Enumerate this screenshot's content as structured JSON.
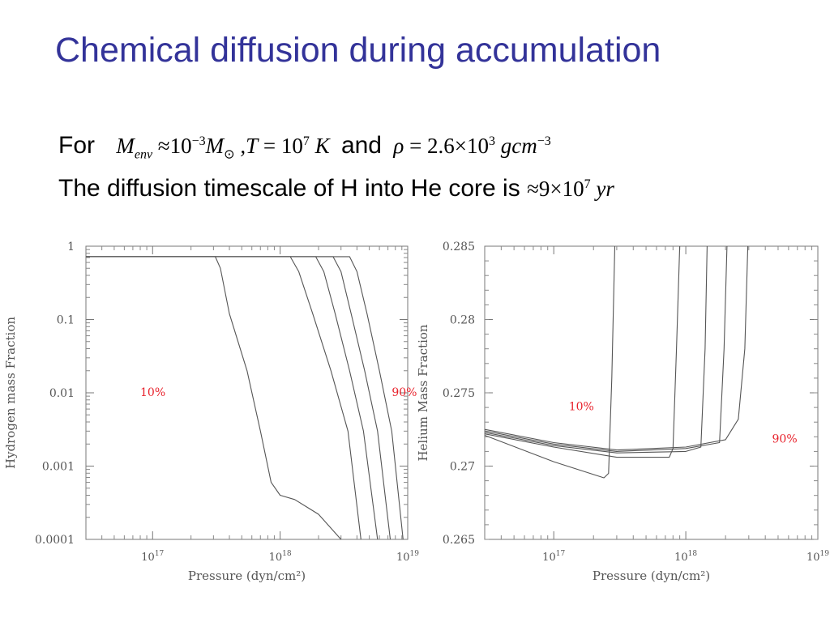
{
  "slide": {
    "title": "Chemical diffusion during accumulation",
    "line1": {
      "prefix": "For",
      "menv_M": "M",
      "menv_sub": "env",
      "approx1": "≈",
      "ten_base": "10",
      "exp_neg3": "−3",
      "msun_M": "M",
      "msun_sub": "⊙",
      "comma_T": ",T",
      "eq1": "=",
      "ten7_base": "10",
      "exp7": "7",
      "K": "K",
      "and": "and",
      "rho": "ρ",
      "eq2": "=",
      "rho_val": "2.6×10",
      "exp3": "3",
      "unit": "gcm",
      "unit_exp": "−3"
    },
    "line2": {
      "text": "The diffusion timescale of H into He core is",
      "approx": "≈",
      "value": "9×10",
      "exp": "7",
      "unit": "yr"
    }
  },
  "chart_data": [
    {
      "type": "line",
      "xlabel": "Pressure (dyn/cm²)",
      "ylabel": "Hydrogen mass Fraction",
      "xscale": "log",
      "yscale": "log",
      "xlim": [
        3e+16,
        1e+19
      ],
      "ylim": [
        0.0001,
        1
      ],
      "xticks": [
        1e+17,
        1e+18,
        1e+19
      ],
      "xtick_labels": [
        {
          "base": "10",
          "exp": "17"
        },
        {
          "base": "10",
          "exp": "18"
        },
        {
          "base": "10",
          "exp": "19"
        }
      ],
      "yticks": [
        0.0001,
        0.001,
        0.01,
        0.1,
        1
      ],
      "ytick_labels": [
        "0.0001",
        "0.001",
        "0.01",
        "0.1",
        "1"
      ],
      "annotations": [
        {
          "text": "10%",
          "x": 8e+16,
          "y": 0.009,
          "color": "#e8212b"
        },
        {
          "text": "90%",
          "x": 7.5e+18,
          "y": 0.009,
          "color": "#e8212b"
        }
      ],
      "series": [
        {
          "x": [
            3e+16,
            3.1e+17,
            3.4e+17,
            4e+17,
            5.5e+17,
            7e+17,
            8.5e+17,
            1e+18,
            1.3e+18,
            2e+18,
            3e+18
          ],
          "y": [
            0.72,
            0.72,
            0.5,
            0.12,
            0.02,
            0.003,
            0.0006,
            0.0004,
            0.00035,
            0.00022,
            0.0001
          ]
        },
        {
          "x": [
            3e+16,
            1.2e+18,
            1.4e+18,
            1.8e+18,
            2.5e+18,
            3.4e+18,
            4.3e+18
          ],
          "y": [
            0.72,
            0.72,
            0.45,
            0.12,
            0.02,
            0.003,
            0.0001
          ]
        },
        {
          "x": [
            3e+16,
            1.9e+18,
            2.2e+18,
            2.7e+18,
            3.5e+18,
            4.5e+18,
            5.8e+18
          ],
          "y": [
            0.72,
            0.72,
            0.45,
            0.12,
            0.02,
            0.003,
            0.0001
          ]
        },
        {
          "x": [
            3e+16,
            2.6e+18,
            3e+18,
            3.6e+18,
            4.6e+18,
            5.8e+18,
            7.3e+18
          ],
          "y": [
            0.72,
            0.72,
            0.45,
            0.12,
            0.02,
            0.003,
            0.0001
          ]
        },
        {
          "x": [
            3e+16,
            3.5e+18,
            4e+18,
            4.8e+18,
            6e+18,
            7.5e+18,
            9.2e+18
          ],
          "y": [
            0.72,
            0.72,
            0.45,
            0.12,
            0.02,
            0.003,
            0.0001
          ]
        }
      ]
    },
    {
      "type": "line",
      "xlabel": "Pressure (dyn/cm²)",
      "ylabel": "Helium  Mass Fraction",
      "xscale": "log",
      "yscale": "linear",
      "xlim": [
        3e+16,
        1e+19
      ],
      "ylim": [
        0.265,
        0.285
      ],
      "xticks": [
        1e+17,
        1e+18,
        1e+19
      ],
      "xtick_labels": [
        {
          "base": "10",
          "exp": "17"
        },
        {
          "base": "10",
          "exp": "18"
        },
        {
          "base": "10",
          "exp": "19"
        }
      ],
      "yticks": [
        0.265,
        0.27,
        0.275,
        0.28,
        0.285
      ],
      "ytick_labels": [
        "0.265",
        "0.27",
        "0.275",
        "0.28",
        "0.285"
      ],
      "annotations": [
        {
          "text": "10%",
          "x": 1.3e+17,
          "y": 0.2738,
          "color": "#e8212b"
        },
        {
          "text": "90%",
          "x": 4.5e+18,
          "y": 0.2716,
          "color": "#e8212b"
        }
      ],
      "series": [
        {
          "x": [
            3e+16,
            1e+17,
            2.4e+17,
            2.6e+17,
            2.75e+17,
            2.9e+17
          ],
          "y": [
            0.2721,
            0.2703,
            0.2692,
            0.2695,
            0.276,
            0.285
          ]
        },
        {
          "x": [
            3e+16,
            1e+17,
            3e+17,
            7.5e+17,
            8e+17,
            8.5e+17,
            9e+17
          ],
          "y": [
            0.2722,
            0.2713,
            0.2706,
            0.2706,
            0.2712,
            0.278,
            0.285
          ]
        },
        {
          "x": [
            3e+16,
            1e+17,
            3e+17,
            1e+18,
            1.3e+18,
            1.4e+18,
            1.45e+18
          ],
          "y": [
            0.2723,
            0.2714,
            0.2709,
            0.271,
            0.2713,
            0.278,
            0.285
          ]
        },
        {
          "x": [
            3e+16,
            1e+17,
            3e+17,
            1e+18,
            1.8e+18,
            1.95e+18,
            2.05e+18
          ],
          "y": [
            0.2724,
            0.2715,
            0.271,
            0.2712,
            0.2716,
            0.278,
            0.285
          ]
        },
        {
          "x": [
            3e+16,
            1e+17,
            3e+17,
            1e+18,
            2e+18,
            2.5e+18,
            2.8e+18,
            2.95e+18
          ],
          "y": [
            0.2725,
            0.2716,
            0.2711,
            0.2713,
            0.2718,
            0.2732,
            0.278,
            0.285
          ]
        }
      ]
    }
  ]
}
